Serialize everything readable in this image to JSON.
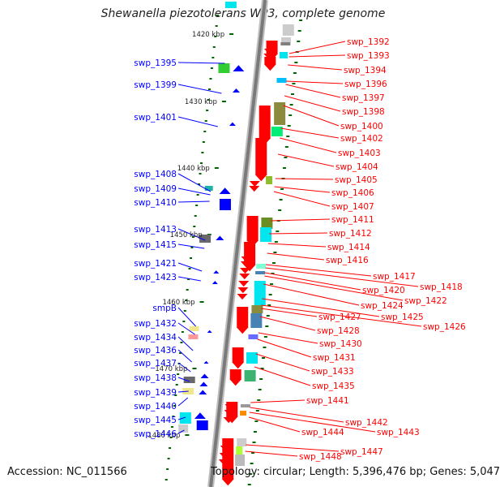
{
  "title": "Shewanella piezotolerans WP3, complete genome",
  "footer": {
    "accession": "Accession: NC_011566",
    "topology": "Topology: circular; Length: 5,396,476 bp; Genes: 5,047"
  },
  "colors": {
    "forward_gene": "#ff0000",
    "reverse_gene": "#0000ff",
    "backbone": "#888888",
    "tick": "#006400"
  },
  "kbp_ticks": [
    "1420 kbp",
    "1430 kbp",
    "1440 kbp",
    "1450 kbp",
    "1460 kbp",
    "1470 kbp",
    "1480 kbp"
  ],
  "left_genes": [
    "swp_1395",
    "swp_1399",
    "swp_1401",
    "swp_1408",
    "swp_1409",
    "swp_1410",
    "swp_1413",
    "swp_1415",
    "swp_1421",
    "swp_1423",
    "smpB",
    "swp_1432",
    "swp_1434",
    "swp_1436",
    "swp_1437",
    "swp_1438",
    "swp_1439",
    "swp_1440",
    "swp_1445",
    "swp_1446"
  ],
  "right_genes": [
    "swp_1392",
    "swp_1393",
    "swp_1394",
    "swp_1396",
    "swp_1397",
    "swp_1398",
    "swp_1400",
    "swp_1402",
    "swp_1403",
    "swp_1404",
    "swp_1405",
    "swp_1406",
    "swp_1407",
    "swp_1411",
    "swp_1412",
    "swp_1414",
    "swp_1416",
    "swp_1417",
    "swp_1418",
    "swp_1420",
    "swp_1422",
    "swp_1424",
    "swp_1425",
    "swp_1426",
    "swp_1427",
    "swp_1428",
    "swp_1430",
    "swp_1431",
    "swp_1433",
    "swp_1435",
    "swp_1441",
    "swp_1442",
    "swp_1443",
    "swp_1444",
    "swp_1447",
    "swp_1448"
  ]
}
